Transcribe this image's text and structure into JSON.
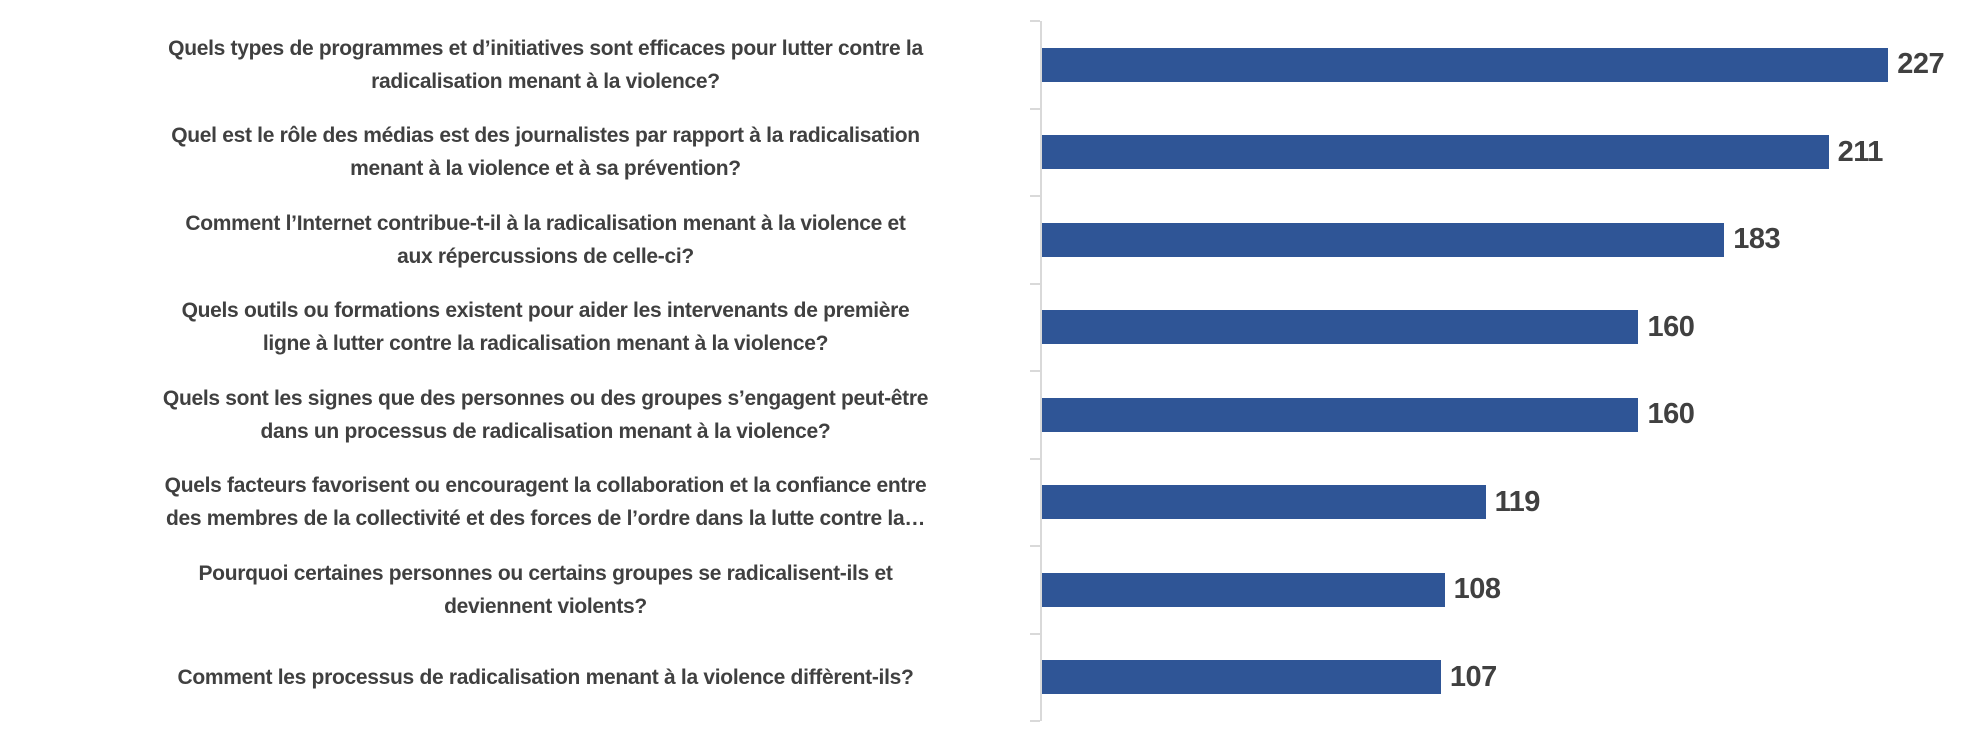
{
  "chart_data": {
    "type": "bar",
    "orientation": "horizontal",
    "title": "",
    "xlabel": "",
    "ylabel": "",
    "xlim": [
      0,
      250
    ],
    "gridlines": false,
    "legend": "none",
    "data_labels": "outside-end",
    "bar_color": "#2F5596",
    "axis_color": "#D9D9D9",
    "text_color": "#404040",
    "categories": [
      "Quels types de programmes et d’initiatives sont efficaces pour lutter contre la radicalisation menant à la violence?",
      "Quel est le rôle des médias est des journalistes par rapport à la radicalisation menant à la violence et à sa prévention?",
      "Comment l’Internet contribue-t-il à la radicalisation menant à la violence et aux répercussions de celle-ci?",
      "Quels outils ou formations existent pour aider les intervenants de première ligne à lutter contre la radicalisation menant à la violence?",
      "Quels sont les signes que des personnes ou des groupes s’engagent peut-être dans un processus de radicalisation menant à la violence?",
      "Quels facteurs favorisent ou encouragent la collaboration et la confiance entre des membres de la collectivité et des forces de l’ordre dans la lutte contre la…",
      "Pourquoi certaines personnes ou certains groupes se radicalisent-ils et deviennent violents?",
      "Comment les processus de radicalisation menant à la violence diffèrent-ils?"
    ],
    "categories_wrapped": [
      [
        "Quels types de programmes et d’initiatives sont efficaces pour lutter contre la",
        "radicalisation menant à la violence?"
      ],
      [
        "Quel est le rôle des médias est des journalistes par rapport à la radicalisation",
        "menant à la violence et à sa prévention?"
      ],
      [
        "Comment l’Internet contribue-t-il à la radicalisation menant à la violence et",
        "aux répercussions de celle-ci?"
      ],
      [
        "Quels outils ou formations existent pour aider les intervenants de première",
        "ligne à lutter contre la radicalisation menant à la violence?"
      ],
      [
        "Quels sont les signes que des personnes ou des groupes s’engagent peut-être",
        "dans un processus de radicalisation menant à la violence?"
      ],
      [
        "Quels facteurs favorisent ou encouragent la collaboration et la confiance entre",
        "des membres de la collectivité et des forces de l’ordre dans la lutte contre la…"
      ],
      [
        "Pourquoi certaines personnes ou certains groupes se radicalisent-ils et",
        "deviennent violents?"
      ],
      [
        "Comment les processus de radicalisation menant à la violence diffèrent-ils?"
      ]
    ],
    "values": [
      227,
      211,
      183,
      160,
      160,
      119,
      108,
      107
    ]
  }
}
